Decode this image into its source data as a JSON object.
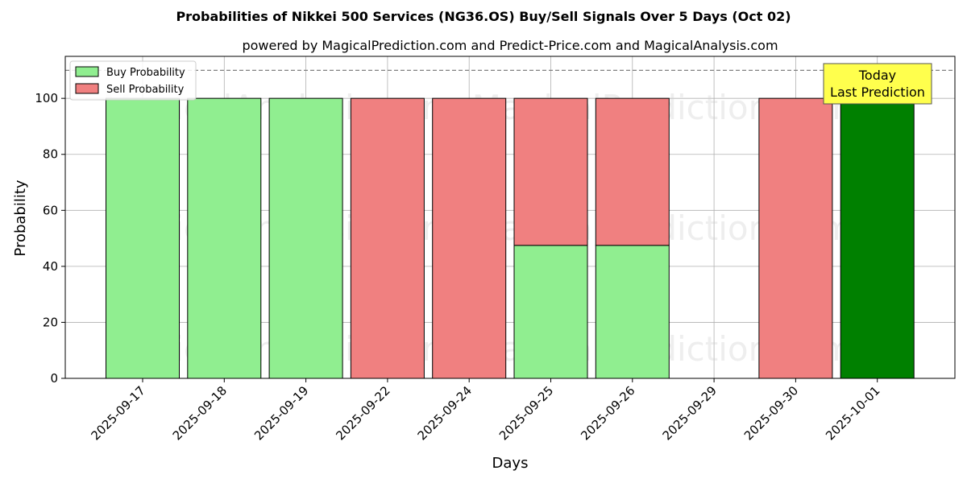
{
  "chart_data": {
    "type": "bar",
    "title": "Probabilities of Nikkei 500 Services (NG36.OS) Buy/Sell Signals Over 5 Days (Oct 02)",
    "subtitle": "powered by MagicalPrediction.com and Predict-Price.com and MagicalAnalysis.com",
    "xlabel": "Days",
    "ylabel": "Probability",
    "ylim": [
      0,
      115
    ],
    "yticks": [
      0,
      20,
      40,
      60,
      80,
      100
    ],
    "grid": true,
    "legend_position": "top-left",
    "threshold_line": 110,
    "categories": [
      "2025-09-17",
      "2025-09-18",
      "2025-09-19",
      "2025-09-22",
      "2025-09-24",
      "2025-09-25",
      "2025-09-26",
      "2025-09-29",
      "2025-09-30",
      "2025-10-01"
    ],
    "series": [
      {
        "name": "Buy Probability",
        "color": "#90ee90",
        "values": [
          100,
          100,
          100,
          0,
          0,
          47.5,
          47.5,
          0,
          0,
          100
        ]
      },
      {
        "name": "Sell Probability",
        "color": "#f08080",
        "values": [
          0,
          0,
          0,
          100,
          100,
          52.5,
          52.5,
          0,
          100,
          0
        ]
      }
    ],
    "highlight": {
      "category": "2025-10-01",
      "color": "#008000"
    },
    "annotation": {
      "lines": [
        "Today",
        "Last Prediction"
      ],
      "background": "#ffff4d"
    },
    "watermarks": [
      "MagicalAnalysis.com",
      "MagicalPrediction.com"
    ]
  }
}
